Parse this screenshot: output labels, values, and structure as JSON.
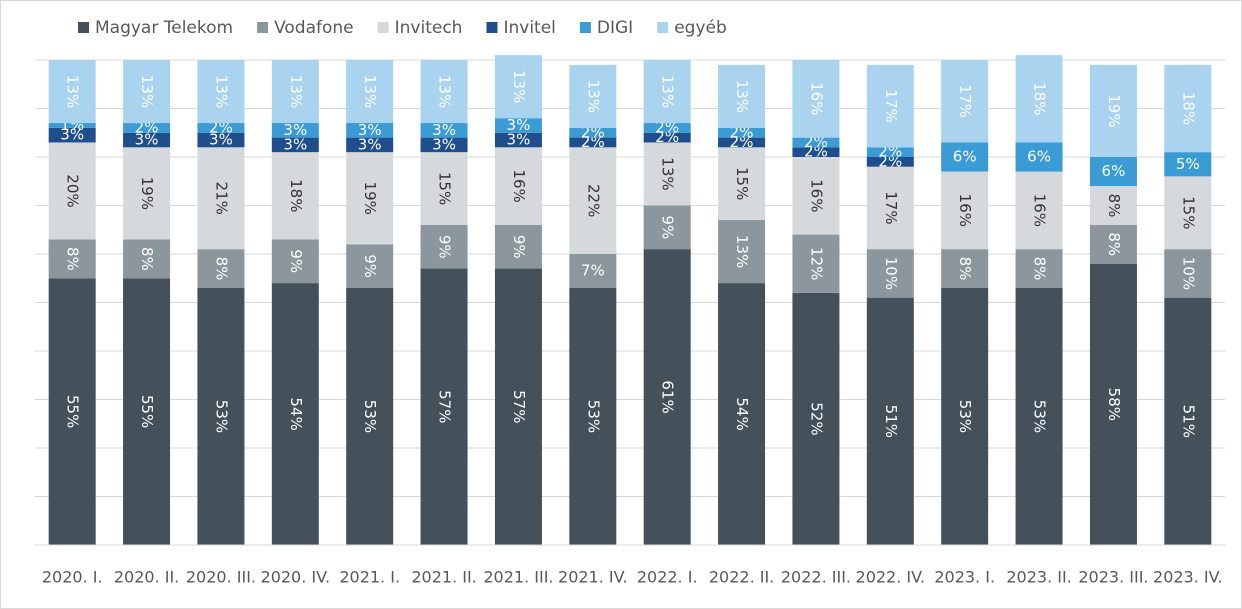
{
  "chart_data": {
    "type": "bar",
    "stacked": true,
    "categories": [
      "2020. I.",
      "2020. II.",
      "2020. III.",
      "2020. IV.",
      "2021. I.",
      "2021. II.",
      "2021. III.",
      "2021. IV.",
      "2022. I.",
      "2022. II.",
      "2022. III.",
      "2022. IV.",
      "2023. I.",
      "2023. II.",
      "2023. III.",
      "2023. IV."
    ],
    "series": [
      {
        "name": "Magyar Telekom",
        "color": "#44505a",
        "label_color": "#ffffff",
        "values": [
          55,
          55,
          53,
          54,
          53,
          57,
          57,
          53,
          61,
          54,
          52,
          51,
          53,
          53,
          58,
          51
        ],
        "value_labels": [
          "55%",
          "55%",
          "53%",
          "54%",
          "53%",
          "57%",
          "57%",
          "53%",
          "61%",
          "54%",
          "52%",
          "51%",
          "53%",
          "53%",
          "58%",
          "51%"
        ]
      },
      {
        "name": "Vodafone",
        "color": "#8c969d",
        "label_color": "#ffffff",
        "values": [
          8,
          8,
          8,
          9,
          9,
          9,
          9,
          7,
          9,
          13,
          12,
          10,
          8,
          8,
          8,
          10
        ],
        "value_labels": [
          "8%",
          "8%",
          "8%",
          "9%",
          "9%",
          "9%",
          "9%",
          "7%",
          "9%",
          "13%",
          "12%",
          "10%",
          "8%",
          "8%",
          "8%",
          "10%"
        ]
      },
      {
        "name": "Invitech",
        "color": "#d5d9dc",
        "label_color": "#333333",
        "values": [
          20,
          19,
          21,
          18,
          19,
          15,
          16,
          22,
          13,
          15,
          16,
          17,
          16,
          16,
          8,
          15
        ],
        "value_labels": [
          "20%",
          "19%",
          "21%",
          "18%",
          "19%",
          "15%",
          "16%",
          "22%",
          "13%",
          "15%",
          "16%",
          "17%",
          "16%",
          "16%",
          "8%",
          "15%"
        ]
      },
      {
        "name": "Invitel",
        "color": "#1f4e8c",
        "label_color": "#ffffff",
        "values": [
          3,
          3,
          3,
          3,
          3,
          3,
          3,
          2,
          2,
          2,
          2,
          2,
          null,
          null,
          null,
          null
        ],
        "value_labels": [
          "3%",
          "3%",
          "3%",
          "3%",
          "3%",
          "3%",
          "3%",
          "2%",
          "2%",
          "2%",
          "2%",
          "2%",
          null,
          null,
          null,
          null
        ]
      },
      {
        "name": "DIGI",
        "color": "#3a9bd5",
        "label_color": "#ffffff",
        "values": [
          1,
          2,
          2,
          3,
          3,
          3,
          3,
          2,
          2,
          2,
          2,
          2,
          6,
          6,
          6,
          5
        ],
        "value_labels": [
          "1%",
          "2%",
          "2%",
          "3%",
          "3%",
          "3%",
          "3%",
          "2%",
          "2%",
          "2%",
          "2%",
          "2%",
          "6%",
          "6%",
          "6%",
          "5%"
        ]
      },
      {
        "name": "egyéb",
        "color": "#a9d3ee",
        "label_color": "#ffffff",
        "values": [
          13,
          13,
          13,
          13,
          13,
          13,
          13,
          13,
          13,
          13,
          16,
          17,
          17,
          18,
          19,
          18
        ],
        "value_labels": [
          "13%",
          "13%",
          "13%",
          "13%",
          "13%",
          "13%",
          "13%",
          "13%",
          "13%",
          "13%",
          "16%",
          "17%",
          "17%",
          "18%",
          "19%",
          "18%"
        ]
      }
    ],
    "ylim": [
      0,
      100
    ],
    "yticks": [
      0,
      10,
      20,
      30,
      40,
      50,
      60,
      70,
      80,
      90,
      100
    ],
    "grid": true
  }
}
